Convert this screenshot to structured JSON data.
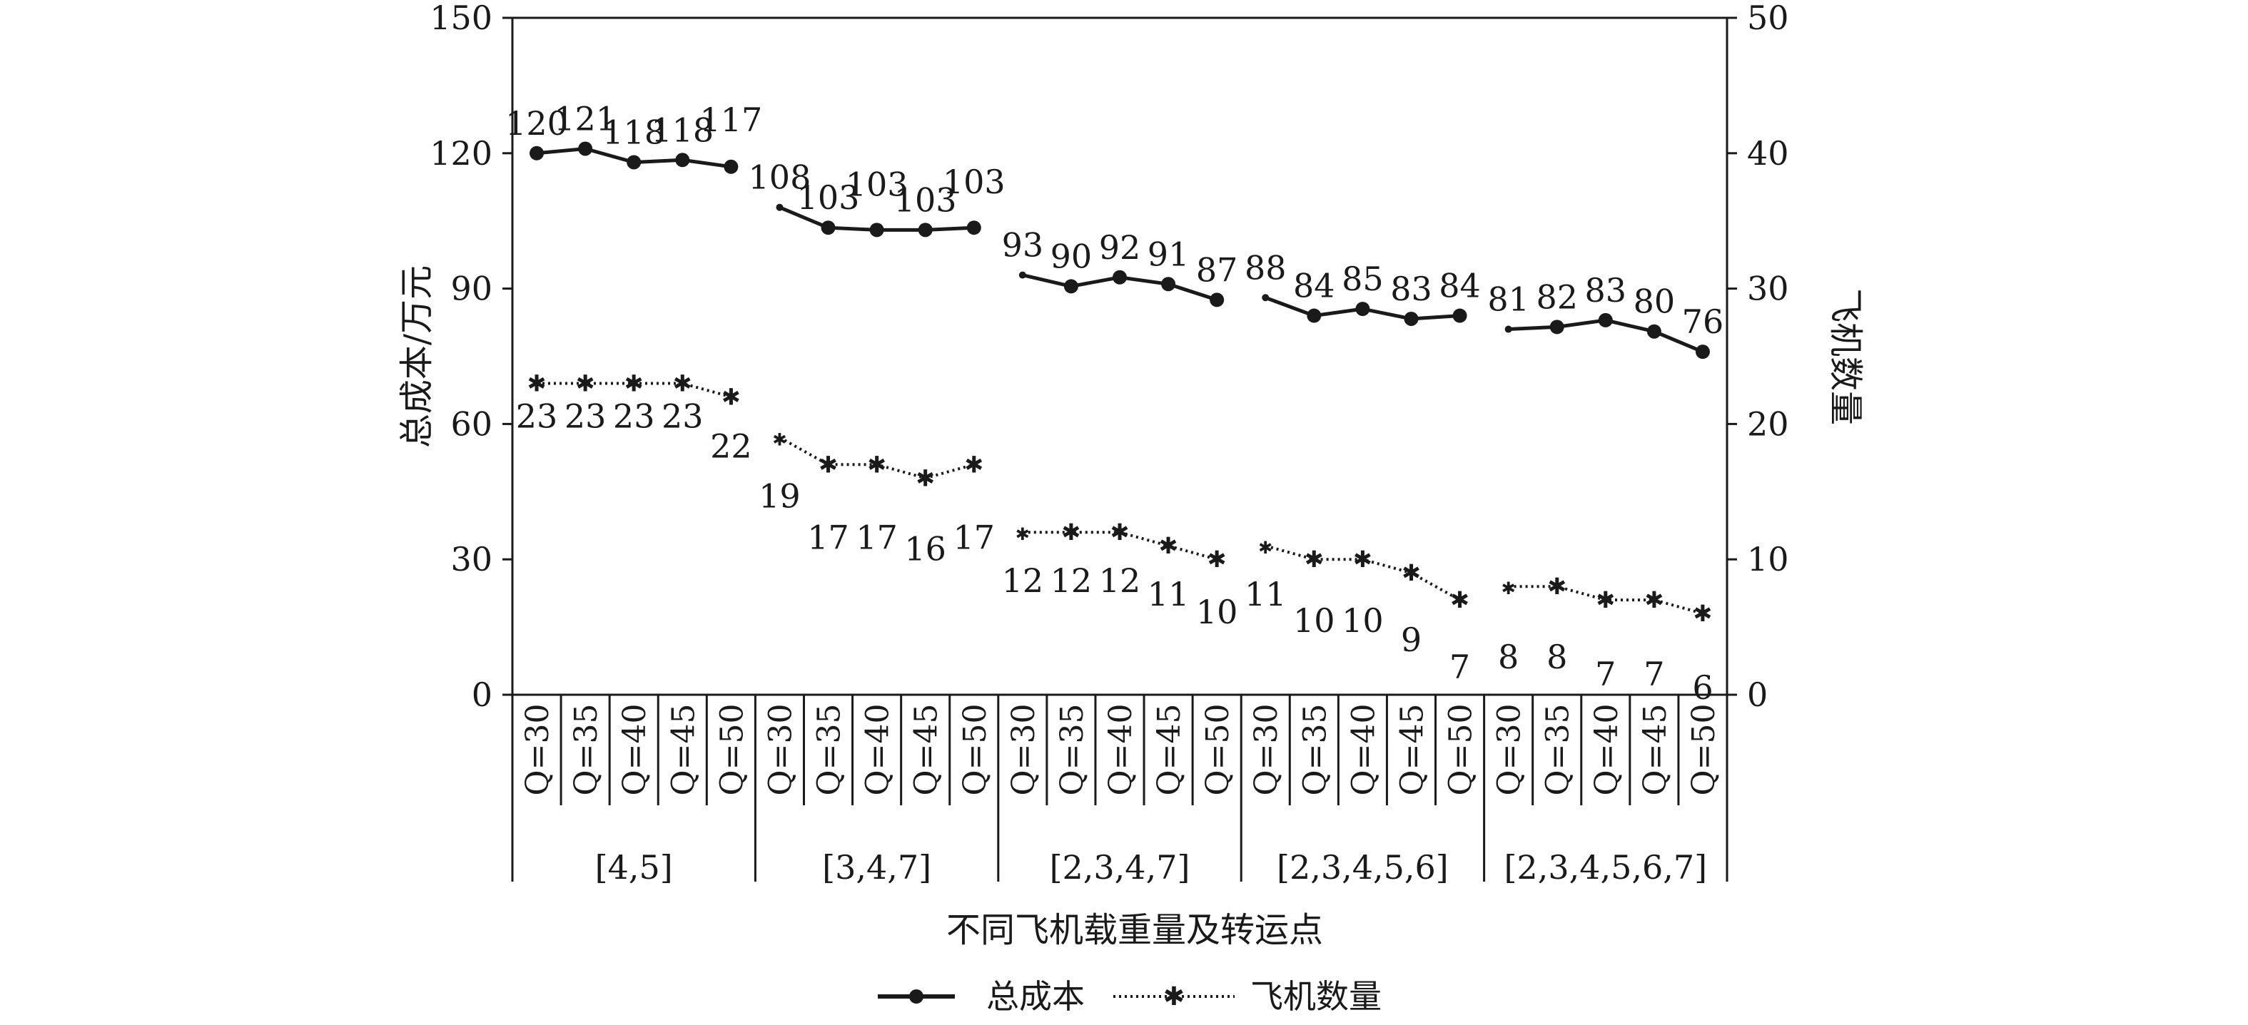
{
  "chart_data": {
    "type": "line",
    "xlabel": "不同飞机载重量及转运点",
    "ylabel_left": "总成本/万元",
    "ylabel_right": "飞机数量",
    "ylim_left": [
      0,
      150
    ],
    "yticks_left": [
      0,
      30,
      60,
      90,
      120,
      150
    ],
    "ylim_right": [
      0,
      50
    ],
    "yticks_right": [
      0,
      10,
      20,
      30,
      40,
      50
    ],
    "grid": false,
    "legend_position": "bottom-center",
    "groups": [
      {
        "label": "[4,5]",
        "categories": [
          "Q=30",
          "Q=35",
          "Q=40",
          "Q=45",
          "Q=50"
        ]
      },
      {
        "label": "[3,4,7]",
        "categories": [
          "Q=30",
          "Q=35",
          "Q=40",
          "Q=45",
          "Q=50"
        ]
      },
      {
        "label": "[2,3,4,7]",
        "categories": [
          "Q=30",
          "Q=35",
          "Q=40",
          "Q=45",
          "Q=50"
        ]
      },
      {
        "label": "[2,3,4,5,6]",
        "categories": [
          "Q=30",
          "Q=35",
          "Q=40",
          "Q=45",
          "Q=50"
        ]
      },
      {
        "label": "[2,3,4,5,6,7]",
        "categories": [
          "Q=30",
          "Q=35",
          "Q=40",
          "Q=45",
          "Q=50"
        ]
      }
    ],
    "series": [
      {
        "name": "总成本",
        "axis": "left",
        "style": "solid-circle",
        "values": [
          [
            120,
            121,
            118,
            118,
            117
          ],
          [
            108,
            103,
            103,
            103,
            103
          ],
          [
            93,
            90,
            92,
            91,
            87
          ],
          [
            88,
            84,
            85,
            83,
            84
          ],
          [
            81,
            82,
            83,
            80,
            76
          ]
        ],
        "plot_values": [
          [
            120,
            121,
            118,
            118.5,
            117
          ],
          [
            108,
            103.5,
            103,
            103,
            103.5
          ],
          [
            93,
            90.5,
            92.5,
            91,
            87.5
          ],
          [
            88,
            84,
            85.5,
            83.3,
            84
          ],
          [
            81,
            81.5,
            83,
            80.5,
            76
          ]
        ],
        "label_offsets": [
          [
            -26,
            -26,
            -26,
            -26,
            -50
          ],
          [
            -26,
            -26,
            -48,
            -26,
            -48
          ],
          [
            -26,
            -26,
            -26,
            -26,
            -26
          ],
          [
            -26,
            -26,
            -26,
            -26,
            -26
          ],
          [
            -26,
            -26,
            -26,
            -26,
            -26
          ]
        ]
      },
      {
        "name": "飞机数量",
        "axis": "right",
        "style": "dotted-star",
        "values": [
          [
            23,
            23,
            23,
            23,
            22
          ],
          [
            19,
            17,
            17,
            16,
            17
          ],
          [
            12,
            12,
            12,
            11,
            10
          ],
          [
            11,
            10,
            10,
            9,
            7
          ],
          [
            8,
            8,
            7,
            7,
            6
          ]
        ],
        "label_offsets": [
          [
            62,
            62,
            62,
            62,
            85
          ],
          [
            98,
            118,
            118,
            115,
            118
          ],
          [
            84,
            84,
            84,
            84,
            90
          ],
          [
            84,
            102,
            102,
            110,
            110
          ],
          [
            115,
            115,
            120,
            120,
            120
          ]
        ]
      }
    ]
  }
}
